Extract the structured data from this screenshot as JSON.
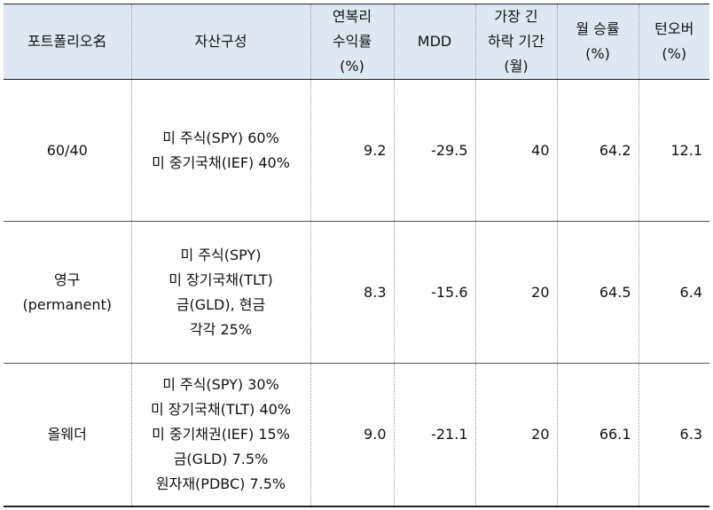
{
  "headers": [
    [
      "포트폴리오名"
    ],
    [
      "자산구성"
    ],
    [
      "연복리",
      "수익률",
      "(%)"
    ],
    [
      "MDD"
    ],
    [
      "가장 긴",
      "하락 기간",
      "(월)"
    ],
    [
      "월 승률",
      "(%)"
    ],
    [
      "턴오버",
      "(%)"
    ]
  ],
  "rows": [
    {
      "name": [
        "60/40"
      ],
      "assets": [
        "미 주식(SPY) 60%",
        "미 중기국채(IEF) 40%"
      ],
      "cagr": "9.2",
      "mdd": "-29.5",
      "longest_drawdown": "40",
      "win_rate": "64.2",
      "turnover": "12.1"
    },
    {
      "name": [
        "영구",
        "(permanent)"
      ],
      "assets": [
        "미 주식(SPY)",
        "미 장기국채(TLT)",
        "금(GLD), 현금",
        "각각 25%"
      ],
      "cagr": "8.3",
      "mdd": "-15.6",
      "longest_drawdown": "20",
      "win_rate": "64.5",
      "turnover": "6.4"
    },
    {
      "name": [
        "올웨더"
      ],
      "assets": [
        "미 주식(SPY) 30%",
        "미 장기국채(TLT) 40%",
        "미 중기채권(IEF) 15%",
        "금(GLD) 7.5%",
        "원자재(PDBC) 7.5%"
      ],
      "cagr": "9.0",
      "mdd": "-21.1",
      "longest_drawdown": "20",
      "win_rate": "66.1",
      "turnover": "6.3"
    }
  ]
}
